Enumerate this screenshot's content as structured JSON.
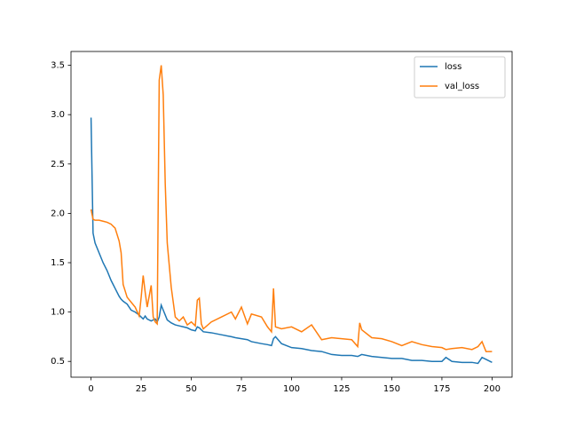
{
  "chart_data": {
    "type": "line",
    "x": [
      0,
      1,
      2,
      4,
      6,
      8,
      10,
      12,
      14,
      15,
      16,
      18,
      20,
      22,
      24,
      25,
      26,
      27,
      28,
      30,
      31,
      32,
      33,
      34,
      35,
      36,
      37,
      38,
      40,
      42,
      44,
      46,
      48,
      50,
      52,
      53,
      54,
      55,
      56,
      60,
      65,
      70,
      72,
      75,
      78,
      80,
      85,
      88,
      90,
      91,
      92,
      95,
      100,
      105,
      110,
      115,
      120,
      125,
      130,
      133,
      134,
      135,
      140,
      145,
      150,
      155,
      160,
      165,
      170,
      175,
      177,
      180,
      185,
      190,
      193,
      195,
      197,
      200
    ],
    "series": [
      {
        "name": "loss",
        "color": "#1f77b4",
        "values": [
          2.97,
          1.8,
          1.7,
          1.6,
          1.5,
          1.42,
          1.32,
          1.24,
          1.16,
          1.13,
          1.11,
          1.08,
          1.02,
          1.0,
          0.97,
          0.95,
          0.93,
          0.96,
          0.93,
          0.91,
          0.92,
          0.93,
          0.9,
          0.95,
          1.07,
          1.02,
          0.97,
          0.92,
          0.89,
          0.87,
          0.86,
          0.85,
          0.84,
          0.82,
          0.81,
          0.85,
          0.84,
          0.82,
          0.8,
          0.79,
          0.77,
          0.75,
          0.74,
          0.73,
          0.72,
          0.7,
          0.68,
          0.67,
          0.66,
          0.73,
          0.75,
          0.68,
          0.64,
          0.63,
          0.61,
          0.6,
          0.57,
          0.56,
          0.56,
          0.55,
          0.56,
          0.57,
          0.55,
          0.54,
          0.53,
          0.53,
          0.51,
          0.51,
          0.5,
          0.5,
          0.54,
          0.5,
          0.49,
          0.49,
          0.48,
          0.54,
          0.52,
          0.49
        ]
      },
      {
        "name": "val_loss",
        "color": "#ff7f0e",
        "values": [
          2.04,
          1.94,
          1.93,
          1.93,
          1.92,
          1.91,
          1.89,
          1.85,
          1.72,
          1.6,
          1.28,
          1.15,
          1.1,
          1.05,
          0.96,
          1.15,
          1.37,
          1.2,
          1.05,
          1.27,
          0.95,
          0.9,
          0.88,
          3.35,
          3.5,
          3.2,
          2.3,
          1.7,
          1.25,
          0.95,
          0.91,
          0.95,
          0.87,
          0.9,
          0.86,
          1.12,
          1.14,
          0.88,
          0.83,
          0.9,
          0.95,
          1.0,
          0.93,
          1.05,
          0.88,
          0.98,
          0.95,
          0.85,
          0.8,
          1.24,
          0.85,
          0.83,
          0.85,
          0.8,
          0.87,
          0.72,
          0.74,
          0.73,
          0.72,
          0.65,
          0.89,
          0.82,
          0.74,
          0.73,
          0.7,
          0.66,
          0.7,
          0.67,
          0.65,
          0.64,
          0.62,
          0.63,
          0.64,
          0.62,
          0.65,
          0.7,
          0.6,
          0.6
        ]
      }
    ],
    "xlim": [
      -10,
      210
    ],
    "xticks": [
      0,
      25,
      50,
      75,
      100,
      125,
      150,
      175,
      200
    ],
    "ylim": [
      0.34,
      3.64
    ],
    "yticks": [
      0.5,
      {
        "value": 1,
        "label": "1.0"
      },
      1.5,
      {
        "value": 2,
        "label": "2.0"
      },
      2.5,
      {
        "value": 3,
        "label": "3.0"
      },
      3.5
    ],
    "grid": false,
    "legend": "upper right"
  }
}
